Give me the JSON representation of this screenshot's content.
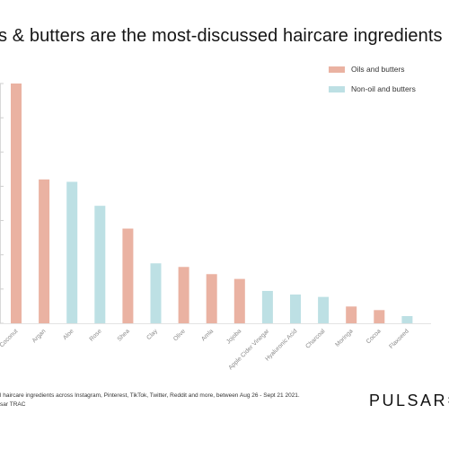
{
  "title": "s & butters are the most-discussed haircare ingredients",
  "legend": [
    {
      "label": "Oils and butters",
      "color": "#eab2a2"
    },
    {
      "label": "Non-oil and butters",
      "color": "#bde0e4"
    }
  ],
  "chart_data": {
    "type": "bar",
    "categories": [
      "Coconut",
      "Argan",
      "Aloe",
      "Rose",
      "Shea",
      "Clay",
      "Olive",
      "Amla",
      "Jojoba",
      "Apple Cider Vinegar",
      "Hyaluronic Acid",
      "Charcoal",
      "Moringa",
      "Cocoa",
      "Flaxseed"
    ],
    "values": [
      100,
      60,
      59,
      49,
      39.5,
      25,
      23.5,
      20.5,
      18.5,
      13.5,
      12,
      11,
      7,
      5.5,
      3
    ],
    "groups": [
      "Oils and butters",
      "Oils and butters",
      "Non-oil and butters",
      "Non-oil and butters",
      "Oils and butters",
      "Non-oil and butters",
      "Oils and butters",
      "Oils and butters",
      "Oils and butters",
      "Non-oil and butters",
      "Non-oil and butters",
      "Non-oil and butters",
      "Oils and butters",
      "Oils and butters",
      "Non-oil and butters"
    ],
    "ylim": [
      0,
      100
    ],
    "grid": false,
    "legend_position": "top-right"
  },
  "footer": {
    "note_line1": "l haircare ingredients across Instagram, Pinterest, TikTok, Twitter, Reddit and more, between Aug 26 - Sept 21 2021.",
    "note_line2": "sar TRAC",
    "brand": "PULSAR✱"
  }
}
